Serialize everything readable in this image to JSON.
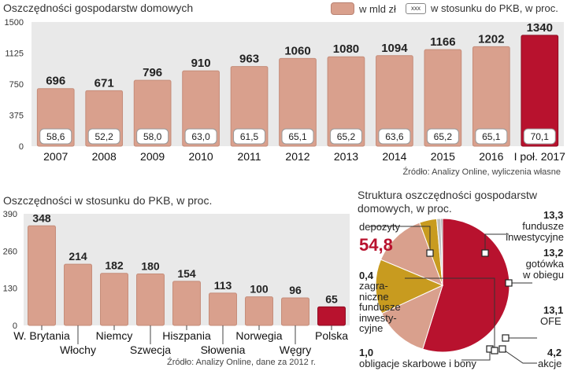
{
  "colors": {
    "bar": "#d9a08d",
    "highlight": "#b8122e",
    "gold": "#c89b1f",
    "panel": "#e9e9e9"
  },
  "chart_data": [
    {
      "type": "bar",
      "title": "Oszczędności gospodarstw domowych",
      "legend": {
        "series_label": "w mld zł",
        "box_label": "w stosunku do PKB, w proc.",
        "box_sample": "xxx"
      },
      "categories": [
        "2007",
        "2008",
        "2009",
        "2010",
        "2011",
        "2012",
        "2013",
        "2014",
        "2015",
        "2016",
        "I poł. 2017"
      ],
      "values": [
        696,
        671,
        796,
        910,
        963,
        1060,
        1080,
        1094,
        1166,
        1202,
        1340
      ],
      "value_labels": [
        "696",
        "671",
        "796",
        "910",
        "963",
        "1060",
        "1080",
        "1094",
        "1166",
        "1202",
        "1340"
      ],
      "pkb_labels": [
        "58,6",
        "52,2",
        "58,0",
        "63,0",
        "61,5",
        "65,1",
        "65,2",
        "63,6",
        "65,2",
        "65,1",
        "70,1"
      ],
      "highlight_index": 10,
      "yticks": [
        "0",
        "375",
        "750",
        "1125",
        "1500"
      ],
      "ytick_values": [
        0,
        375,
        750,
        1125,
        1500
      ],
      "ylim": [
        0,
        1500
      ],
      "source": "Źródło: Analizy Online, wyliczenia własne"
    },
    {
      "type": "bar",
      "title": "Oszczędności w stosunku do PKB, w proc.",
      "categories": [
        "W. Brytania",
        "Włochy",
        "Niemcy",
        "Szwecja",
        "Hiszpania",
        "Słowenia",
        "Norwegia",
        "Węgry",
        "Polska"
      ],
      "values": [
        348,
        214,
        182,
        180,
        154,
        113,
        100,
        96,
        65
      ],
      "value_labels": [
        "348",
        "214",
        "182",
        "180",
        "154",
        "113",
        "100",
        "96",
        "65"
      ],
      "highlight_index": 8,
      "yticks": [
        "0",
        "130",
        "260",
        "390"
      ],
      "ytick_values": [
        0,
        130,
        260,
        390
      ],
      "ylim": [
        0,
        390
      ],
      "source": "Źródło: Analizy Online, dane za 2012 r."
    },
    {
      "type": "pie",
      "title": "Struktura oszczędności gospodarstw domowych, w proc.",
      "slices": [
        {
          "name": "depozyty",
          "value": 54.8,
          "label": "54,8"
        },
        {
          "name": "fundusze inwestycyjne",
          "value": 13.3,
          "label": "13,3"
        },
        {
          "name": "gotówka w obiegu",
          "value": 13.2,
          "label": "13,2"
        },
        {
          "name": "OFE",
          "value": 13.1,
          "label": "13,1"
        },
        {
          "name": "akcje",
          "value": 4.2,
          "label": "4,2"
        },
        {
          "name": "obligacje skarbowe i bony",
          "value": 1.0,
          "label": "1,0"
        },
        {
          "name": "zagraniczne fundusze inwestycyjne",
          "value": 0.4,
          "label": "0,4"
        }
      ]
    }
  ],
  "pie_text": {
    "depozyty": "depozyty",
    "fundusze": "fundusze\ninwestycyjne",
    "gotowka": "gotówka\nw obiegu",
    "ofe": "OFE",
    "akcje": "akcje",
    "obligacje": "obligacje skarbowe i bony",
    "zagraniczne": "zagra-\nniczne\nfundusze\ninwesty-\ncyjne",
    "title_line1": "Struktura oszczędności gospodarstw",
    "title_line2": "domowych, w proc."
  }
}
